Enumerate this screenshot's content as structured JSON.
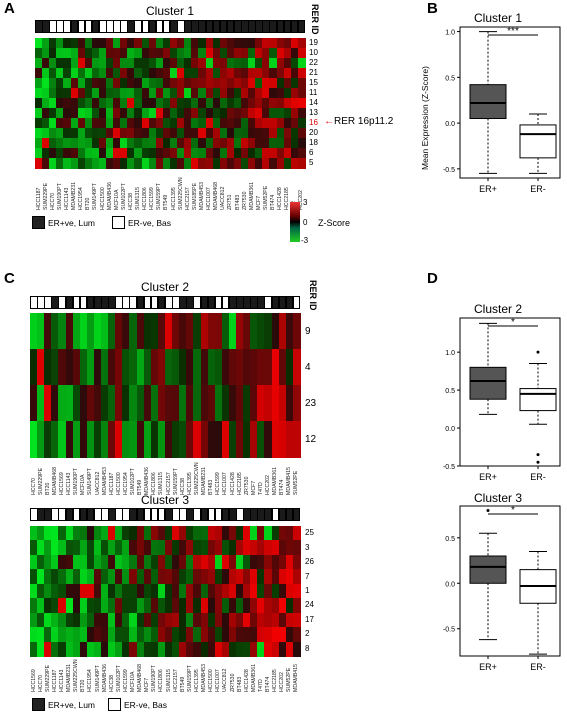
{
  "panels": {
    "A": {
      "label": "A",
      "title": "Cluster 1",
      "rer_header": "RER ID",
      "rows": [
        "19",
        "10",
        "22",
        "21",
        "15",
        "11",
        "14",
        "13",
        "16",
        "20",
        "18",
        "6",
        "5"
      ],
      "highlight_index": 8,
      "highlight_note": "RER 16p11.2",
      "columns": [
        "HCC1187",
        "SUM229PE",
        "HCC70",
        "SUM190PT",
        "HCC1143",
        "MDAMB231",
        "HCC1954",
        "BT20",
        "SUM149PT",
        "HCC1500",
        "MDAMB436",
        "MCF10A",
        "SUM102PT",
        "HCC38",
        "SUM1315",
        "HCC1806",
        "HCC1599",
        "SUM159PT",
        "BT549",
        "HCC1395",
        "SUM225CWN",
        "HCC2157",
        "SUM185PE",
        "MDAMB453",
        "HCC1007",
        "MDAMB468",
        "UACC812",
        "ZR751",
        "BT483",
        "ZR7530",
        "MDAMB361",
        "MCF7",
        "SUM52PE",
        "BT474",
        "HCC1428",
        "HCC2185",
        "LY2",
        "HCC202"
      ],
      "bar": "1,1,0,0,0,1,0,0,1,0,0,0,0,1,0,0,1,0,0,1,0,1,1,1,1,1,1,1,1,1,1,1,1,1,1,1,1,1"
    },
    "B": {
      "label": "B",
      "title": "Cluster 1",
      "ylabel": "Mean Expression (Z-Score)",
      "sig": "***",
      "yticks": [
        "1.0",
        "0.5",
        "0.0",
        "-0.5"
      ],
      "xticks": [
        "ER+",
        "ER-"
      ]
    },
    "C": {
      "label": "C",
      "title": "Cluster 2",
      "rer_header": "RER ID",
      "rows": [
        "9",
        "4",
        "23",
        "12"
      ],
      "columns": [
        "HCC70",
        "SUM229PE",
        "BT20",
        "MDAMB468",
        "HCC1569",
        "HCC1143",
        "SUM190PT",
        "MCF10A",
        "SUM149PT",
        "UACC812",
        "MDAMB453",
        "HCC1187",
        "HCC1500",
        "HCC1954",
        "SUM102PT",
        "BT549",
        "MDAMB436",
        "HCC1806",
        "SUM1315",
        "HCC2157",
        "SUM159PT",
        "HCC38",
        "HCC1395",
        "SUM225CWN",
        "MDAMB231",
        "BT483",
        "HCC1599",
        "HCC1007",
        "HCC1428",
        "HCC2185",
        "ZR7530",
        "MCF7",
        "T47D",
        "HCC202",
        "MDAMB361",
        "BT474",
        "MDAMB415",
        "SUM52PE"
      ],
      "bar": "0,0,0,1,0,1,0,0,1,1,1,1,0,0,0,1,0,0,1,0,0,1,1,0,1,1,0,0,1,1,1,1,1,0,1,1,1,0"
    },
    "C2": {
      "title": "Cluster 3",
      "rows": [
        "25",
        "3",
        "26",
        "7",
        "1",
        "24",
        "17",
        "2",
        "8"
      ],
      "columns": [
        "HCC1569",
        "HCC70",
        "SUM229PE",
        "HCC1187",
        "HCC1143",
        "MDAMB231",
        "SUM225CWN",
        "BT20",
        "HCC1954",
        "SUM149PT",
        "MDAMB436",
        "HCC38",
        "SUM102PT",
        "HCC1599",
        "MCF10A",
        "MDAMB468",
        "MCF7",
        "SUM190PT",
        "HCC1806",
        "SUM1315",
        "HCC2157",
        "BT549",
        "SUM159PT",
        "HCC1395",
        "MDAMB453",
        "HCC1500",
        "HCC1007",
        "UACC812",
        "ZR7530",
        "BT483",
        "HCC1428",
        "MDAMB361",
        "T47D",
        "BT474",
        "HCC2185",
        "HCC202",
        "SUM52PE",
        "MDAMB415"
      ],
      "bar": "0,1,1,0,0,1,0,1,1,0,0,1,0,0,1,1,0,0,0,1,0,0,1,0,1,0,0,1,1,0,1,1,1,1,0,1,1,1"
    },
    "D": {
      "label": "D",
      "title2": "Cluster 2",
      "title3": "Cluster 3",
      "sig": "*",
      "yticks2": [
        "1.0",
        "0.5",
        "0.0",
        "-0.5"
      ],
      "yticks3": [
        "0.5",
        "0.0",
        "-0.5"
      ],
      "xticks": [
        "ER+",
        "ER-"
      ]
    }
  },
  "legend": {
    "er_pos": "ER+ve, Lum",
    "er_neg": "ER-ve, Bas",
    "zscore": "Z-Score",
    "z_ticks": [
      "3",
      "0",
      "-3"
    ]
  },
  "chart_data": [
    {
      "type": "box",
      "title": "Cluster 1",
      "ylabel": "Mean Expression (Z-Score)",
      "categories": [
        "ER+",
        "ER-"
      ],
      "boxes": [
        {
          "min": -0.55,
          "q1": 0.05,
          "median": 0.22,
          "q3": 0.42,
          "max": 1.0,
          "outliers": []
        },
        {
          "min": -0.55,
          "q1": -0.38,
          "median": -0.12,
          "q3": -0.02,
          "max": 0.1,
          "outliers": []
        }
      ],
      "ylim": [
        -0.6,
        1.05
      ],
      "significance": "***"
    },
    {
      "type": "box",
      "title": "Cluster 2",
      "categories": [
        "ER+",
        "ER-"
      ],
      "boxes": [
        {
          "min": 0.18,
          "q1": 0.38,
          "median": 0.62,
          "q3": 0.8,
          "max": 1.38,
          "outliers": []
        },
        {
          "min": 0.05,
          "q1": 0.23,
          "median": 0.45,
          "q3": 0.52,
          "max": 0.85,
          "outliers": [
            1.0,
            -0.35,
            -0.45
          ]
        }
      ],
      "ylim": [
        -0.5,
        1.45
      ],
      "significance": "*"
    },
    {
      "type": "box",
      "title": "Cluster 3",
      "categories": [
        "ER+",
        "ER-"
      ],
      "boxes": [
        {
          "min": -0.62,
          "q1": 0.0,
          "median": 0.18,
          "q3": 0.3,
          "max": 0.55,
          "outliers": [
            0.8
          ]
        },
        {
          "min": -0.78,
          "q1": -0.22,
          "median": -0.03,
          "q3": 0.15,
          "max": 0.35,
          "outliers": []
        }
      ],
      "ylim": [
        -0.8,
        0.85
      ],
      "significance": "*"
    }
  ]
}
